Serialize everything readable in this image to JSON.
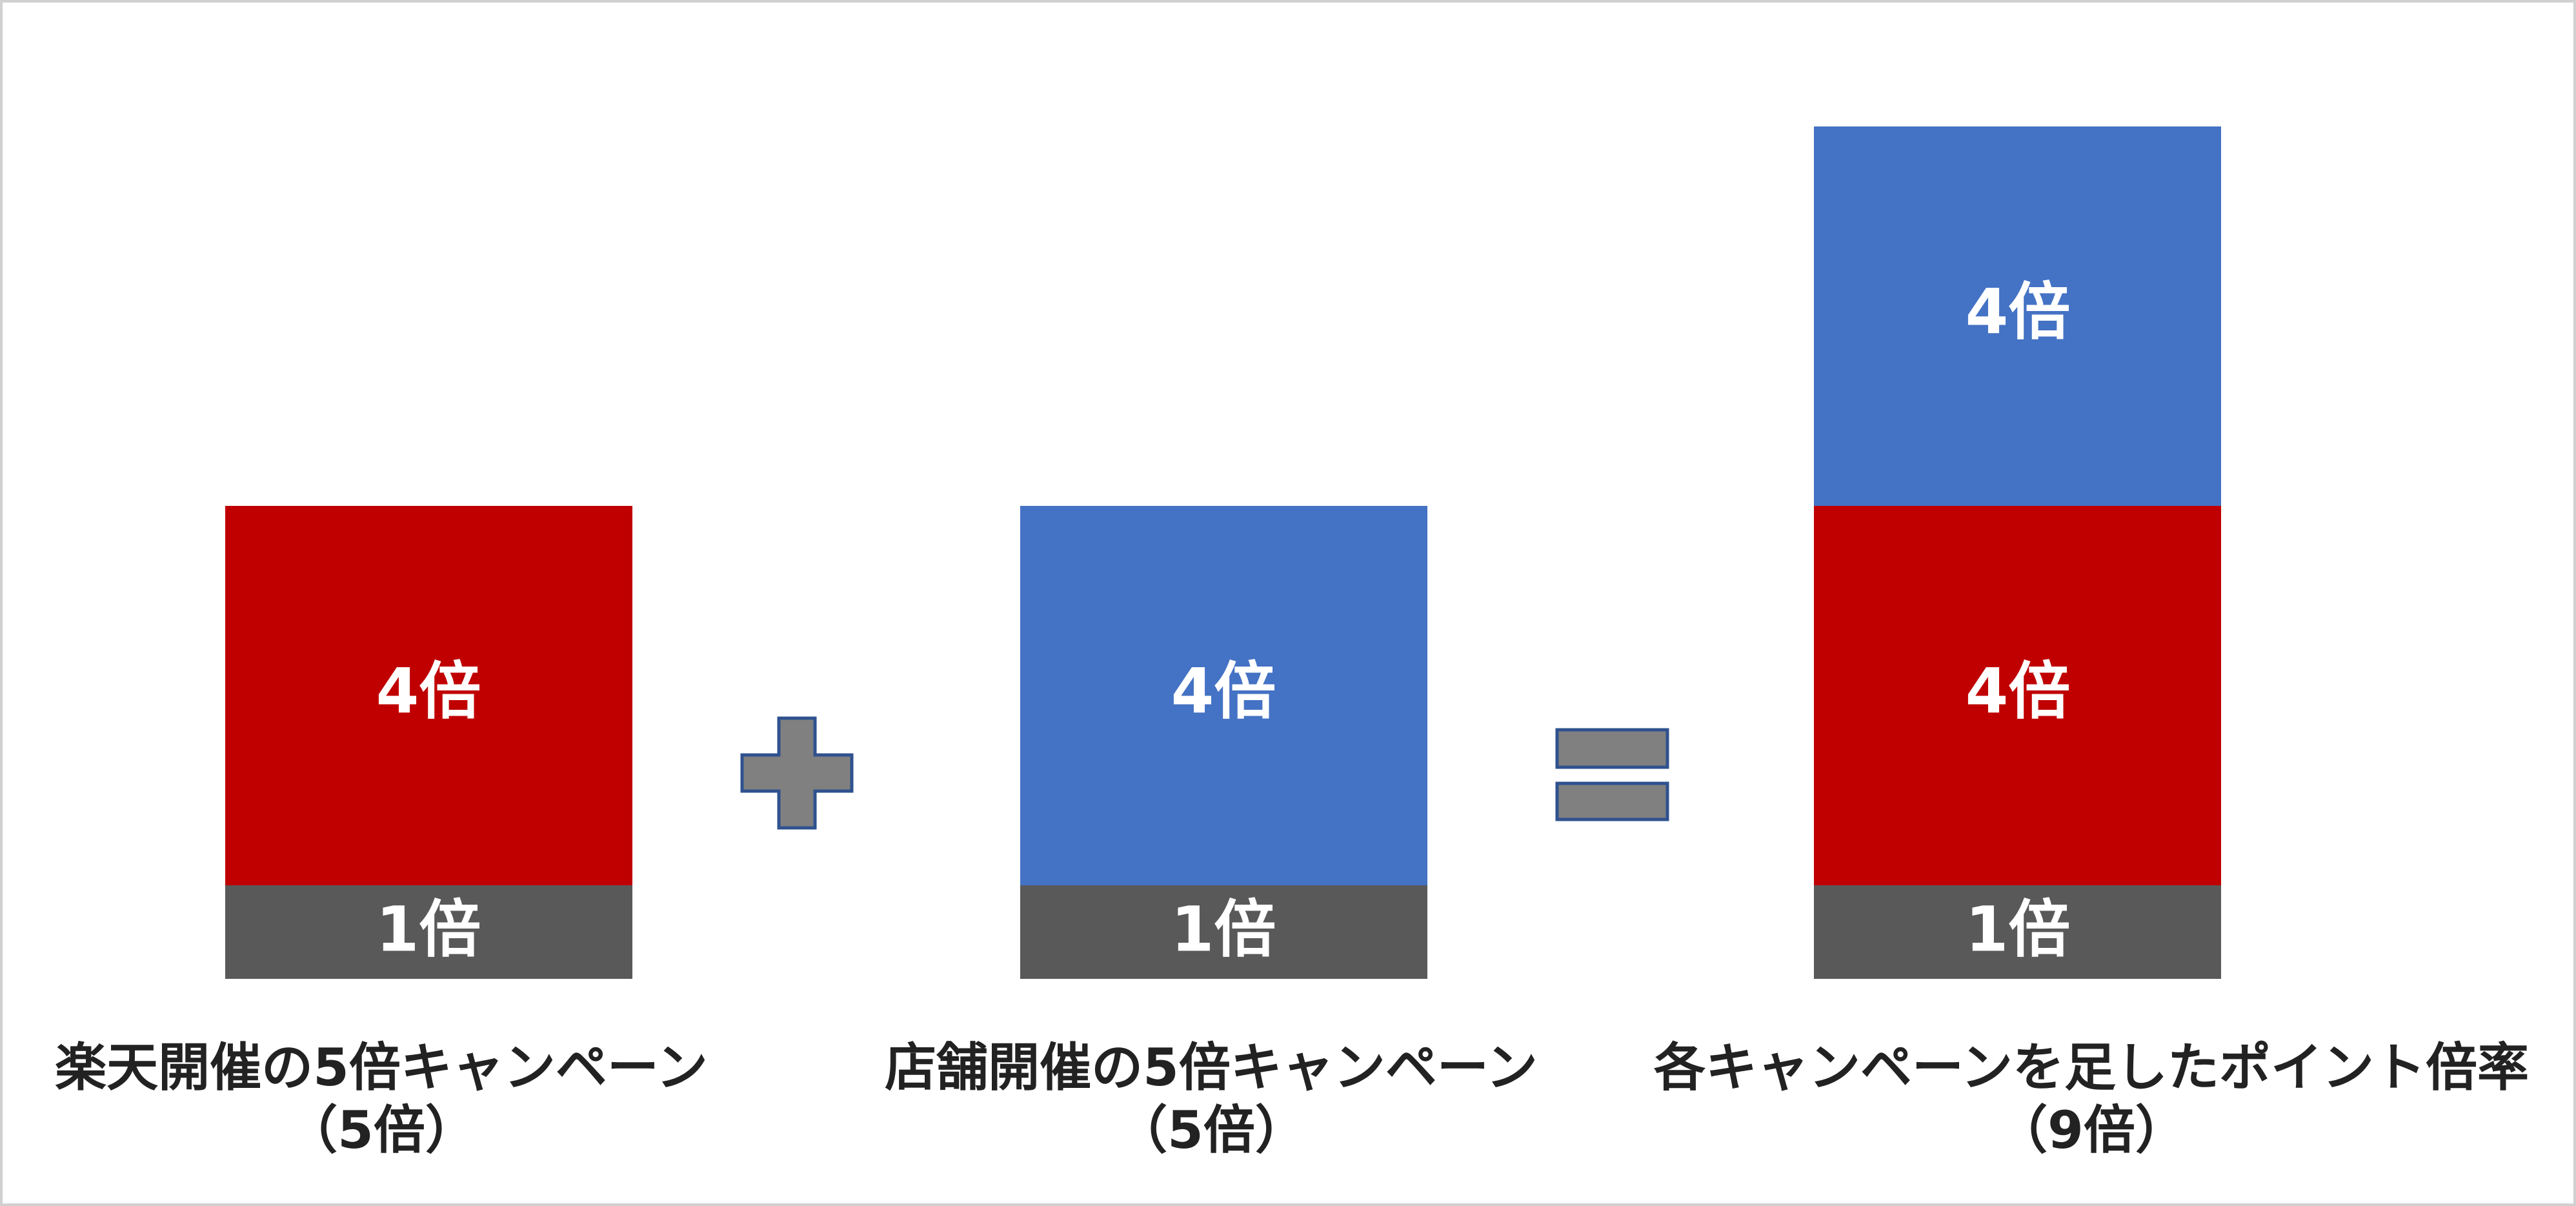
{
  "panels": [
    {
      "segments": [
        {
          "label": "4倍"
        },
        {
          "label": "1倍"
        }
      ],
      "caption": "楽天開催の5倍キャンペーン",
      "total": "（5倍）"
    },
    {
      "segments": [
        {
          "label": "4倍"
        },
        {
          "label": "1倍"
        }
      ],
      "caption": "店舗開催の5倍キャンペーン",
      "total": "（5倍）"
    },
    {
      "segments": [
        {
          "label": "4倍"
        },
        {
          "label": "4倍"
        },
        {
          "label": "1倍"
        }
      ],
      "caption": "各キャンペーンを足したポイント倍率",
      "total": "（9倍）"
    }
  ]
}
